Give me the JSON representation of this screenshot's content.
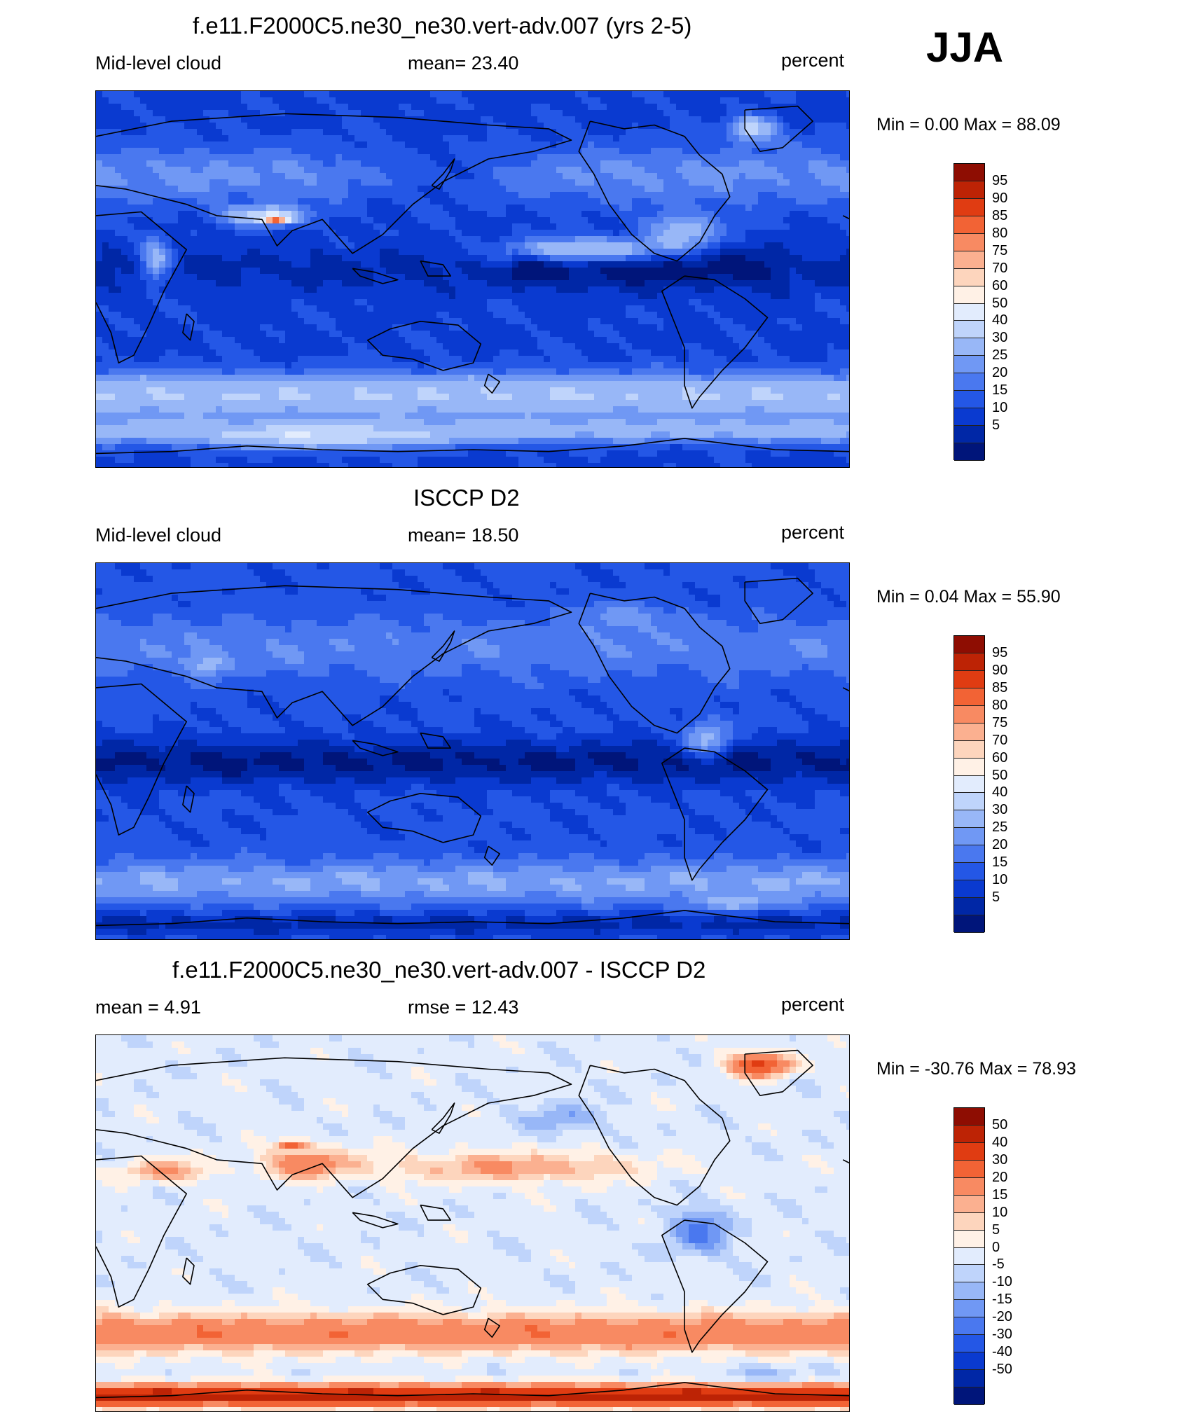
{
  "season": "JJA",
  "colors": {
    "fill_scale": [
      "#00157a",
      "#0027a6",
      "#0a3ad0",
      "#2457e6",
      "#4a78ef",
      "#7098f4",
      "#98b7f7",
      "#bfd4fb",
      "#e2ecfd",
      "#fff1e6",
      "#fdd5bd",
      "#fbb090",
      "#f88a62",
      "#f26335",
      "#e03c12",
      "#bd2305",
      "#8e0d02"
    ],
    "coastline": "#000000"
  },
  "chart_data": [
    {
      "type": "heatmap",
      "title": "f.e11.F2000C5.ne30_ne30.vert-adv.007 (yrs 2-5)",
      "variable": "Mid-level cloud",
      "stat_label": "mean=  23.40",
      "mean": 23.4,
      "units": "percent",
      "minmax_text": "Min =   0.00 Max =  88.09",
      "min": 0.0,
      "max": 88.09,
      "colorbar_ticks": [
        "95",
        "90",
        "85",
        "80",
        "75",
        "70",
        "60",
        "50",
        "40",
        "30",
        "25",
        "20",
        "15",
        "10",
        "5"
      ],
      "field": "model"
    },
    {
      "type": "heatmap",
      "title": "ISCCP D2",
      "variable": "Mid-level cloud",
      "stat_label": "mean=  18.50",
      "mean": 18.5,
      "units": "percent",
      "minmax_text": "Min =   0.04 Max =  55.90",
      "min": 0.04,
      "max": 55.9,
      "colorbar_ticks": [
        "95",
        "90",
        "85",
        "80",
        "75",
        "70",
        "60",
        "50",
        "40",
        "30",
        "25",
        "20",
        "15",
        "10",
        "5"
      ],
      "field": "obs"
    },
    {
      "type": "heatmap",
      "title": "f.e11.F2000C5.ne30_ne30.vert-adv.007 - ISCCP D2",
      "variable": "mean =   4.91",
      "stat_label": "rmse =  12.43",
      "mean": 4.91,
      "rmse": 12.43,
      "units": "percent",
      "minmax_text": "Min = -30.76 Max =  78.93",
      "min": -30.76,
      "max": 78.93,
      "colorbar_ticks": [
        "50",
        "40",
        "30",
        "20",
        "15",
        "10",
        "5",
        "0",
        "-5",
        "-10",
        "-15",
        "-20",
        "-30",
        "-40",
        "-50"
      ],
      "field": "diff"
    }
  ]
}
